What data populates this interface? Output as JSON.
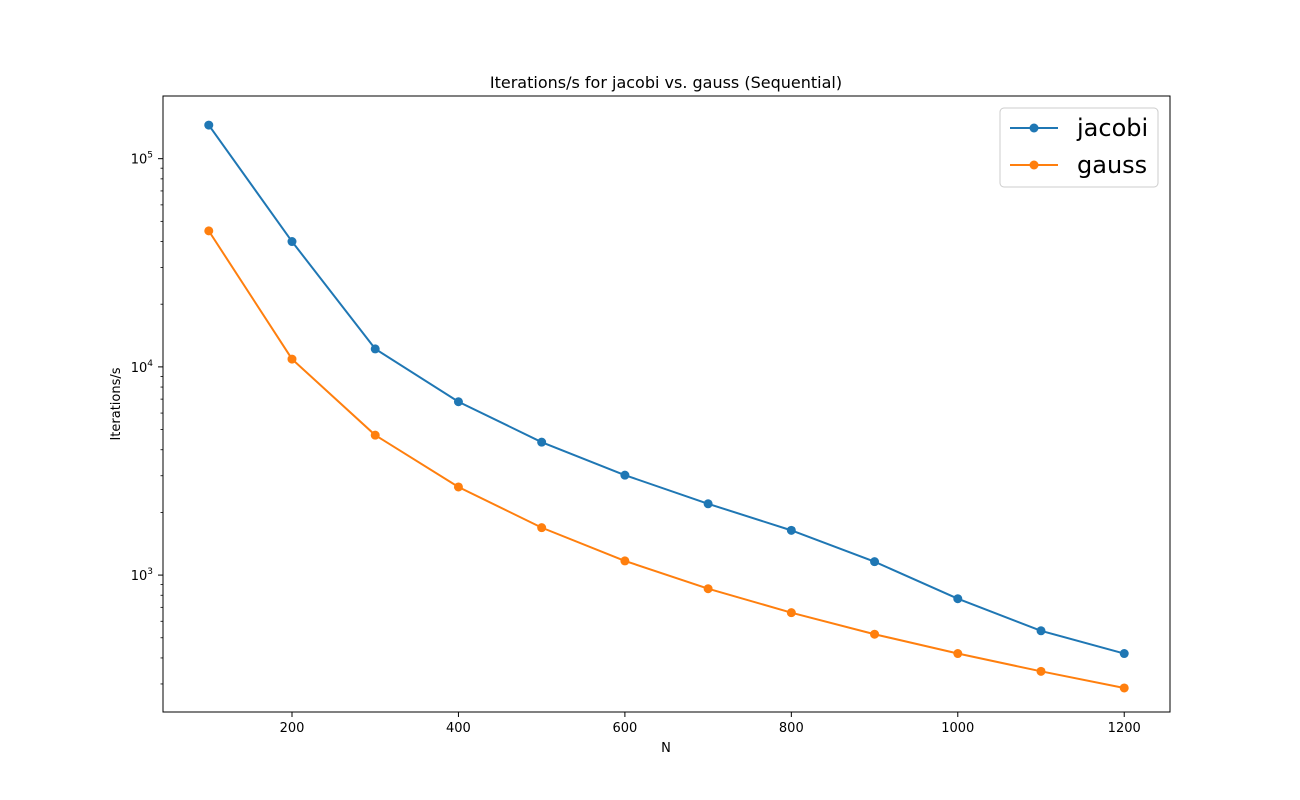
{
  "chart_data": {
    "type": "line",
    "title": "Iterations/s for jacobi vs. gauss (Sequential)",
    "xlabel": "N",
    "ylabel": "Iterations/s",
    "yscale": "log",
    "xlim": [
      45,
      1255
    ],
    "ylim": [
      220,
      200000
    ],
    "x_ticks": [
      200,
      400,
      600,
      800,
      1000,
      1200
    ],
    "x_tick_labels": [
      "200",
      "400",
      "600",
      "800",
      "1000",
      "1200"
    ],
    "y_ticks": [
      1000,
      10000,
      100000
    ],
    "y_tick_labels": [
      {
        "base": "10",
        "exp": "3"
      },
      {
        "base": "10",
        "exp": "4"
      },
      {
        "base": "10",
        "exp": "5"
      }
    ],
    "grid": false,
    "legend_position": "top-right",
    "x": [
      100,
      200,
      300,
      400,
      500,
      600,
      700,
      800,
      900,
      1000,
      1100,
      1200
    ],
    "series": [
      {
        "name": "jacobi",
        "color": "#1f77b4",
        "values": [
          145000,
          40000,
          12200,
          6800,
          4350,
          3020,
          2200,
          1640,
          1160,
          770,
          540,
          420
        ]
      },
      {
        "name": "gauss",
        "color": "#ff7f0e",
        "values": [
          45000,
          10900,
          4700,
          2650,
          1690,
          1170,
          860,
          660,
          520,
          420,
          345,
          287
        ]
      }
    ]
  }
}
